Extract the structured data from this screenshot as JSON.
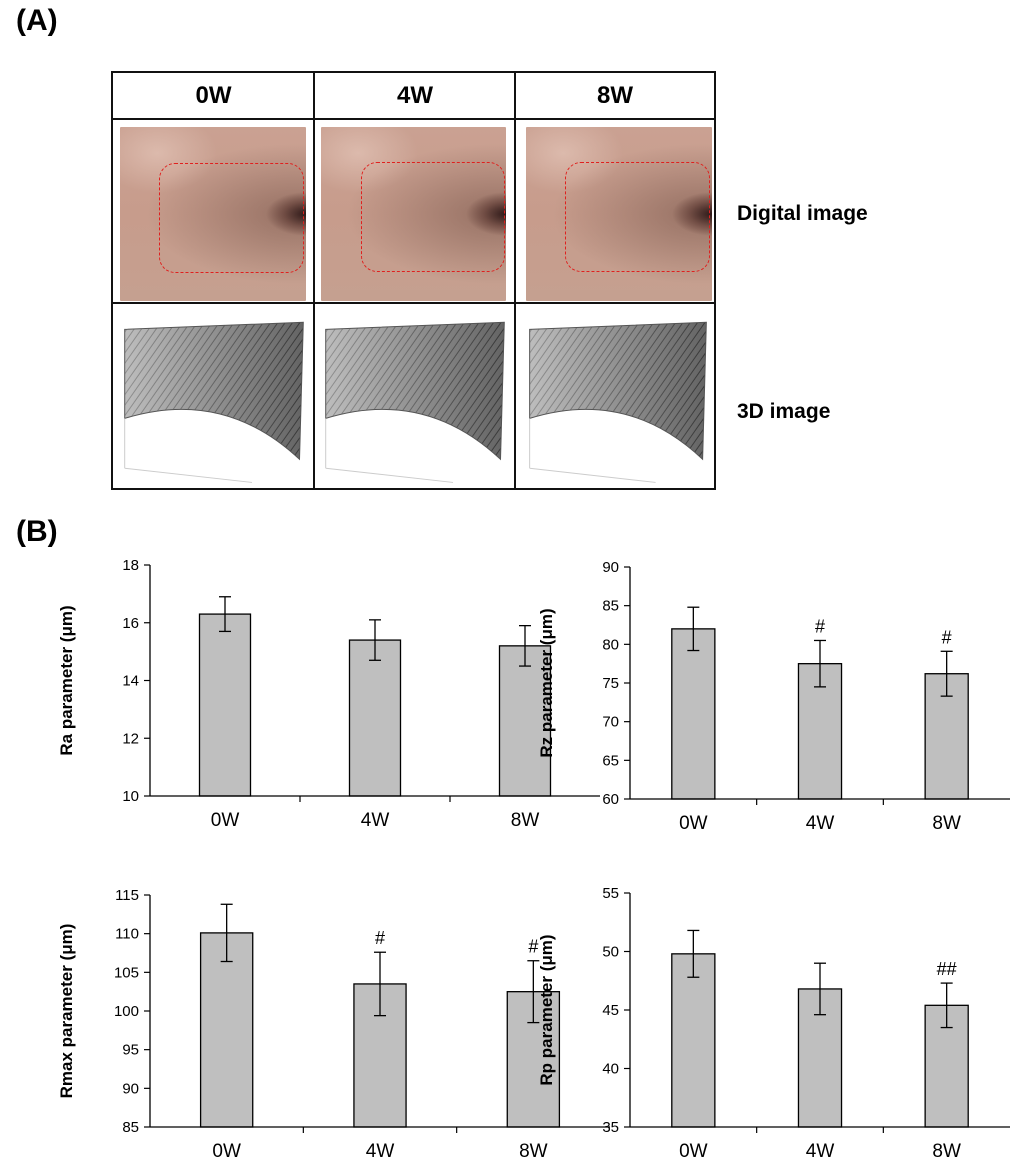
{
  "panel_a": {
    "label": "(A)",
    "columns": [
      "0W",
      "4W",
      "8W"
    ],
    "row_captions": [
      "Digital image",
      "3D image"
    ]
  },
  "panel_b": {
    "label": "(B)"
  },
  "colors": {
    "bar_fill": "#bfbfbf",
    "bar_stroke": "#000000",
    "roi_dash": "#e0201e"
  },
  "chart_data": [
    {
      "type": "bar",
      "categories": [
        "0W",
        "4W",
        "8W"
      ],
      "values": [
        16.3,
        15.4,
        15.2
      ],
      "errors": [
        0.6,
        0.7,
        0.7
      ],
      "annotations": [
        "",
        "",
        ""
      ],
      "ylabel": "Ra parameter (μm)",
      "ylim": [
        10,
        18
      ],
      "yticks": [
        10,
        12,
        14,
        16,
        18
      ],
      "grid": false
    },
    {
      "type": "bar",
      "categories": [
        "0W",
        "4W",
        "8W"
      ],
      "values": [
        82.0,
        77.5,
        76.2
      ],
      "errors": [
        2.8,
        3.0,
        2.9
      ],
      "annotations": [
        "",
        "#",
        "#"
      ],
      "ylabel": "Rz parameter (μm)",
      "ylim": [
        60,
        90
      ],
      "yticks": [
        60,
        65,
        70,
        75,
        80,
        85,
        90
      ],
      "grid": false
    },
    {
      "type": "bar",
      "categories": [
        "0W",
        "4W",
        "8W"
      ],
      "values": [
        110.1,
        103.5,
        102.5
      ],
      "errors": [
        3.7,
        4.1,
        4.0
      ],
      "annotations": [
        "",
        "#",
        "#"
      ],
      "ylabel": "Rmax parameter (μm)",
      "ylim": [
        85,
        115
      ],
      "yticks": [
        85,
        90,
        95,
        100,
        105,
        110,
        115
      ],
      "grid": false
    },
    {
      "type": "bar",
      "categories": [
        "0W",
        "4W",
        "8W"
      ],
      "values": [
        49.8,
        46.8,
        45.4
      ],
      "errors": [
        2.0,
        2.2,
        1.9
      ],
      "annotations": [
        "",
        "",
        "##"
      ],
      "ylabel": "Rp parameter (μm)",
      "ylim": [
        35,
        55
      ],
      "yticks": [
        35,
        40,
        45,
        50,
        55
      ],
      "grid": false
    }
  ]
}
